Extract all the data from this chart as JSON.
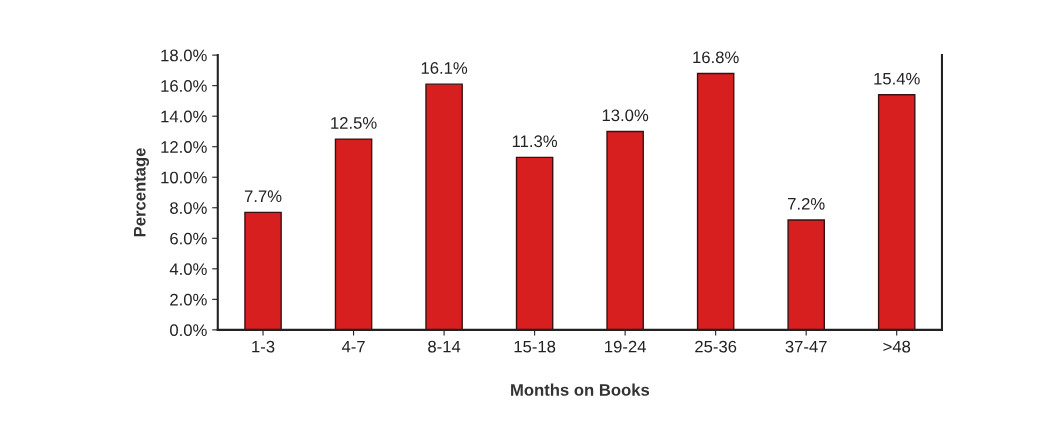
{
  "chart_data": {
    "type": "bar",
    "xlabel": "Months on Books",
    "ylabel": "Percentage",
    "categories": [
      "1-3",
      "4-7",
      "8-14",
      "15-18",
      "19-24",
      "25-36",
      "37-47",
      ">48"
    ],
    "values": [
      7.7,
      12.5,
      16.1,
      11.3,
      13.0,
      16.8,
      7.2,
      15.4
    ],
    "value_labels": [
      "7.7%",
      "12.5%",
      "16.1%",
      "11.3%",
      "13.0%",
      "16.8%",
      "7.2%",
      "15.4%"
    ],
    "color": "#d71f1f",
    "ylim": [
      0,
      18
    ],
    "yticks": [
      {
        "value": 0,
        "label": "0.0%"
      },
      {
        "value": 2,
        "label": "2.0%"
      },
      {
        "value": 4,
        "label": "4.0%"
      },
      {
        "value": 6,
        "label": "6.0%"
      },
      {
        "value": 8,
        "label": "8.0%"
      },
      {
        "value": 10,
        "label": "10.0%"
      },
      {
        "value": 12,
        "label": "12.0%"
      },
      {
        "value": 14,
        "label": "14.0%"
      },
      {
        "value": 16,
        "label": "16.0%"
      },
      {
        "value": 18,
        "label": "18.0%"
      }
    ],
    "grid": false,
    "legend": false
  }
}
